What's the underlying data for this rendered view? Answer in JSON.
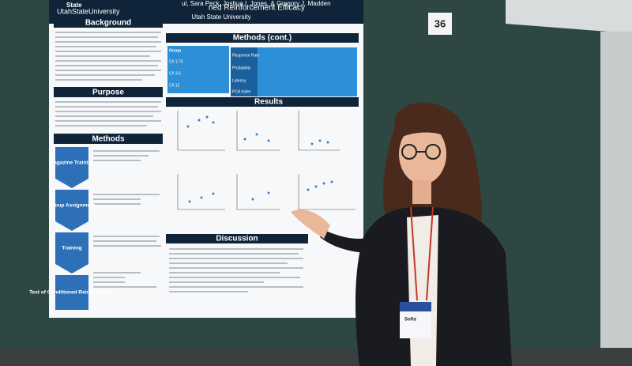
{
  "booth_number": "36",
  "poster": {
    "logo": "State",
    "university_logo": "UtahStateUniversity",
    "title_fragment": "ned Reinforcement Efficacy",
    "authors_fragment": "ul, Sara Peck, Joshua I. Jones, & Gregory J. Madden",
    "affiliation": "Utah State University",
    "sections": {
      "background": "Background",
      "purpose": "Purpose",
      "methods": "Methods",
      "methods_cont": "Methods (cont.)",
      "results": "Results",
      "discussion": "Discussion"
    },
    "method_steps": [
      "Magazine Training",
      "Group Assignment",
      "Training",
      "Test of Conditioned Reinforcement"
    ],
    "table_groups": [
      "C/I 1.75",
      "C/I 3.5",
      "C/I 12"
    ],
    "measures": [
      "Response Rate",
      "Probability",
      "Latency",
      "PCA Index"
    ]
  },
  "badge_name": "Sofia"
}
